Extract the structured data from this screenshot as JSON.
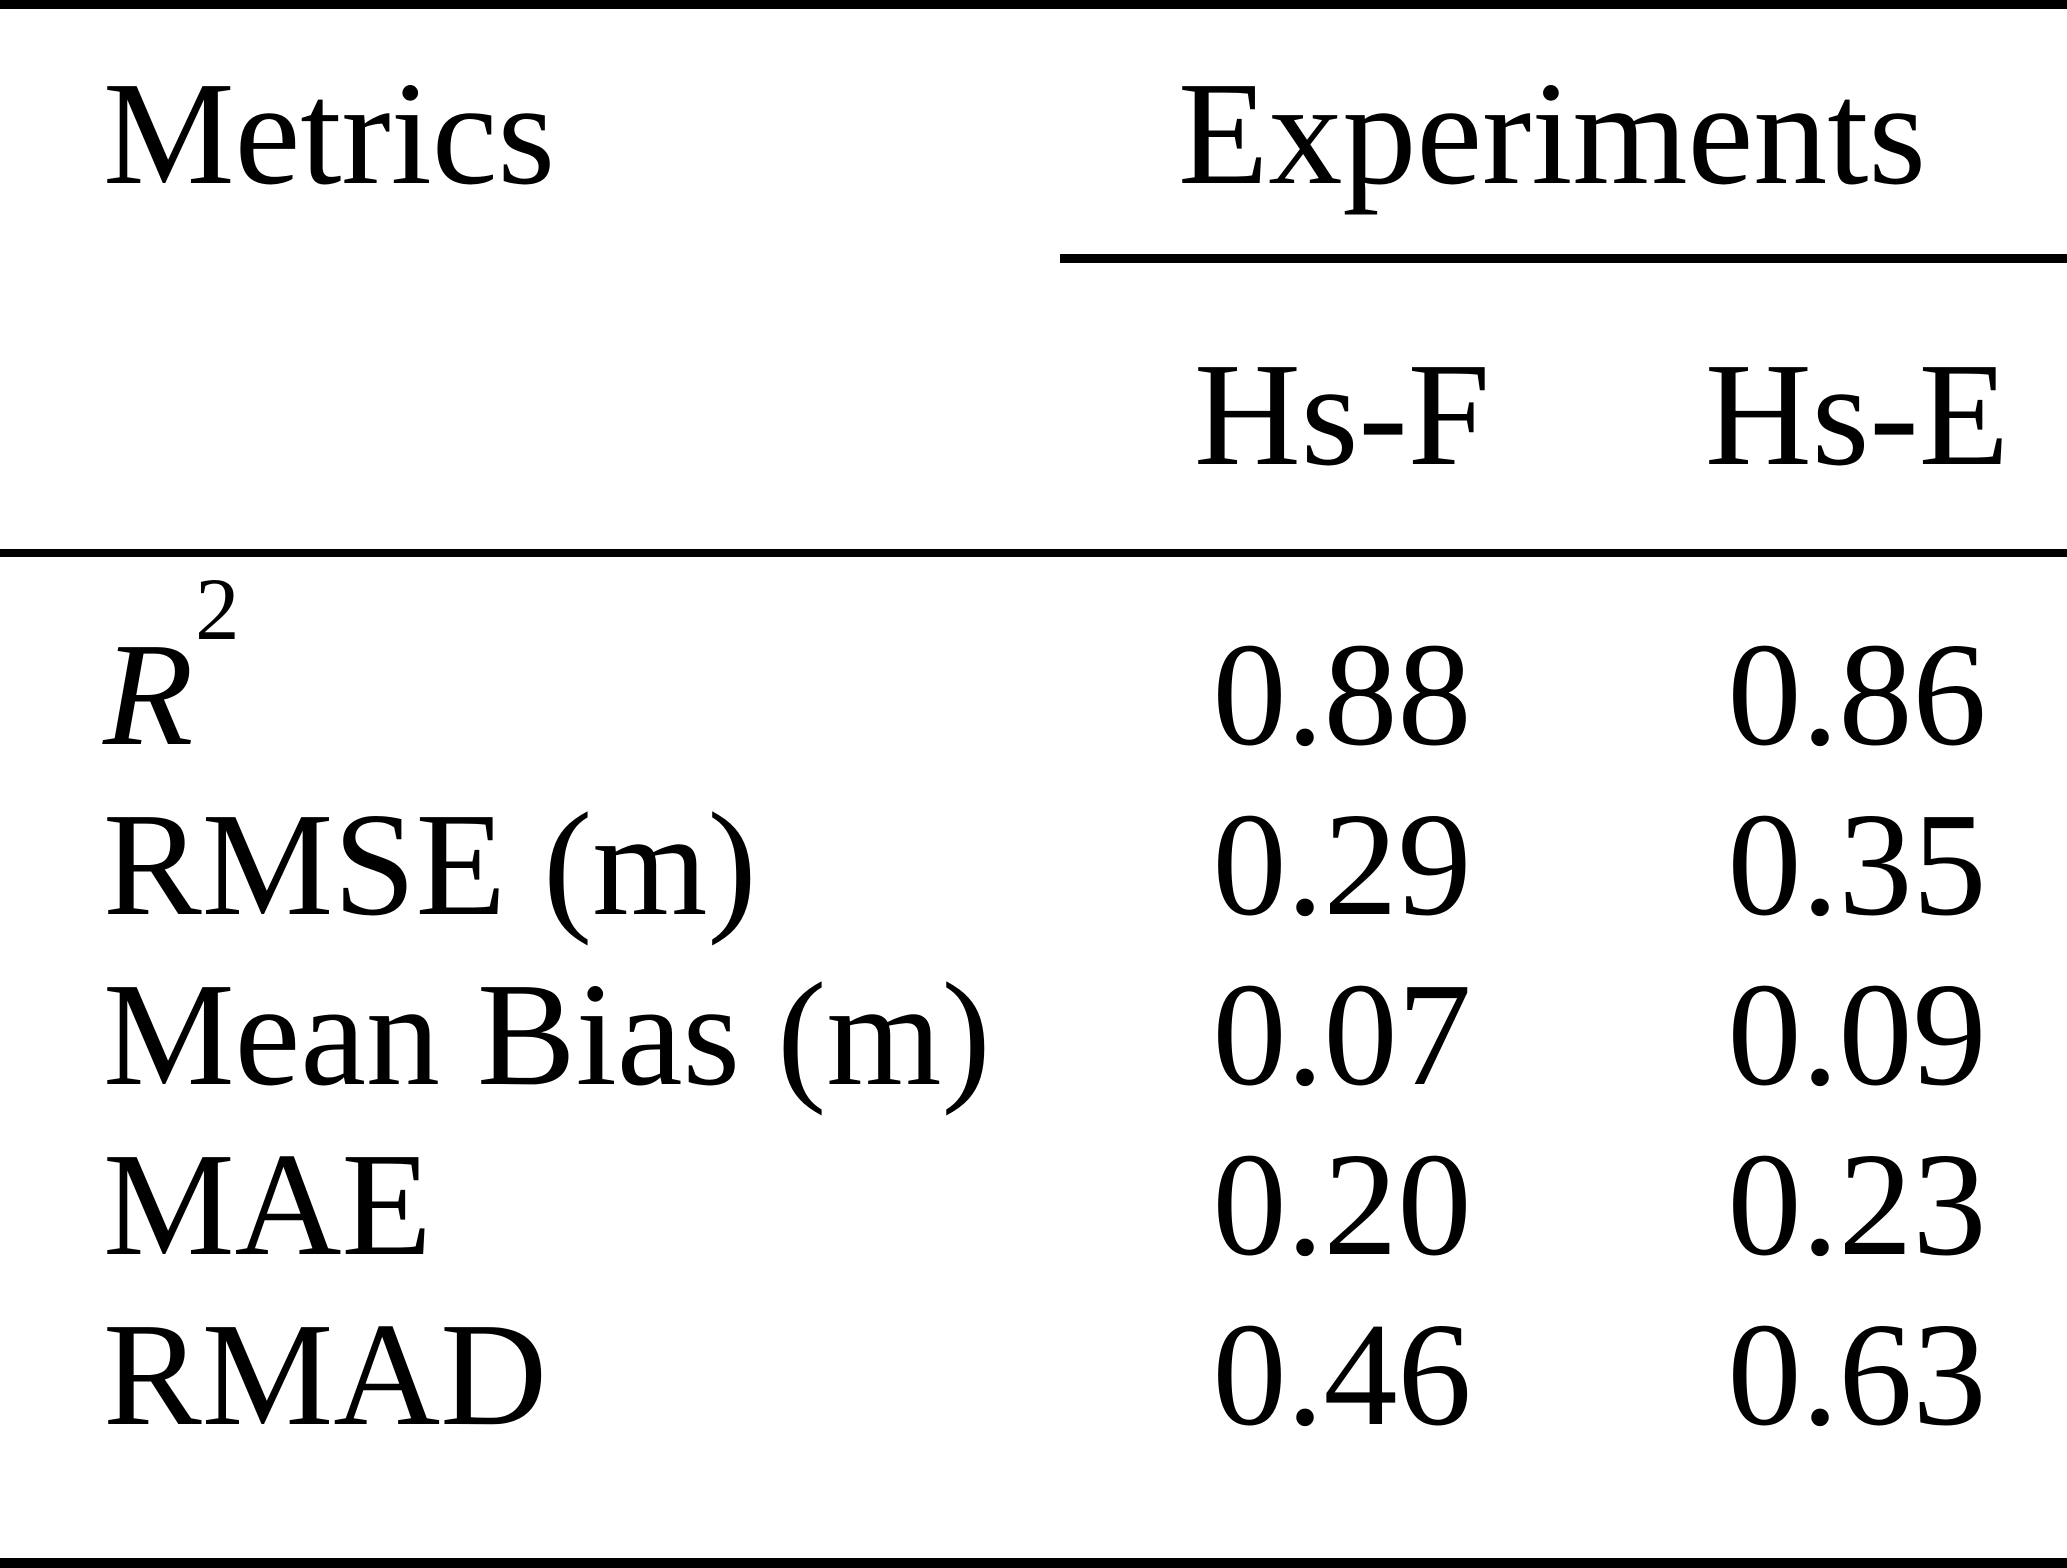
{
  "table": {
    "metrics_header": "Metrics",
    "group_header": "Experiments",
    "columns": [
      "Hs-F",
      "Hs-E"
    ],
    "rows": [
      {
        "label": "R",
        "label_sup": "2",
        "values": [
          "0.88",
          "0.86"
        ]
      },
      {
        "label": "RMSE (m)",
        "values": [
          "0.29",
          "0.35"
        ]
      },
      {
        "label": "Mean Bias (m)",
        "values": [
          "0.07",
          "0.09"
        ]
      },
      {
        "label": "MAE",
        "values": [
          "0.20",
          "0.23"
        ]
      },
      {
        "label": "RMAD",
        "values": [
          "0.46",
          "0.63"
        ]
      }
    ]
  },
  "chart_data": {
    "type": "table",
    "columns": [
      "Metrics",
      "Hs-F",
      "Hs-E"
    ],
    "rows": [
      [
        "R2",
        0.88,
        0.86
      ],
      [
        "RMSE (m)",
        0.29,
        0.35
      ],
      [
        "Mean Bias (m)",
        0.07,
        0.09
      ],
      [
        "MAE",
        0.2,
        0.23
      ],
      [
        "RMAD",
        0.46,
        0.63
      ]
    ]
  },
  "colors": {
    "text": "#000000",
    "background": "#ffffff",
    "rule": "#000000"
  }
}
